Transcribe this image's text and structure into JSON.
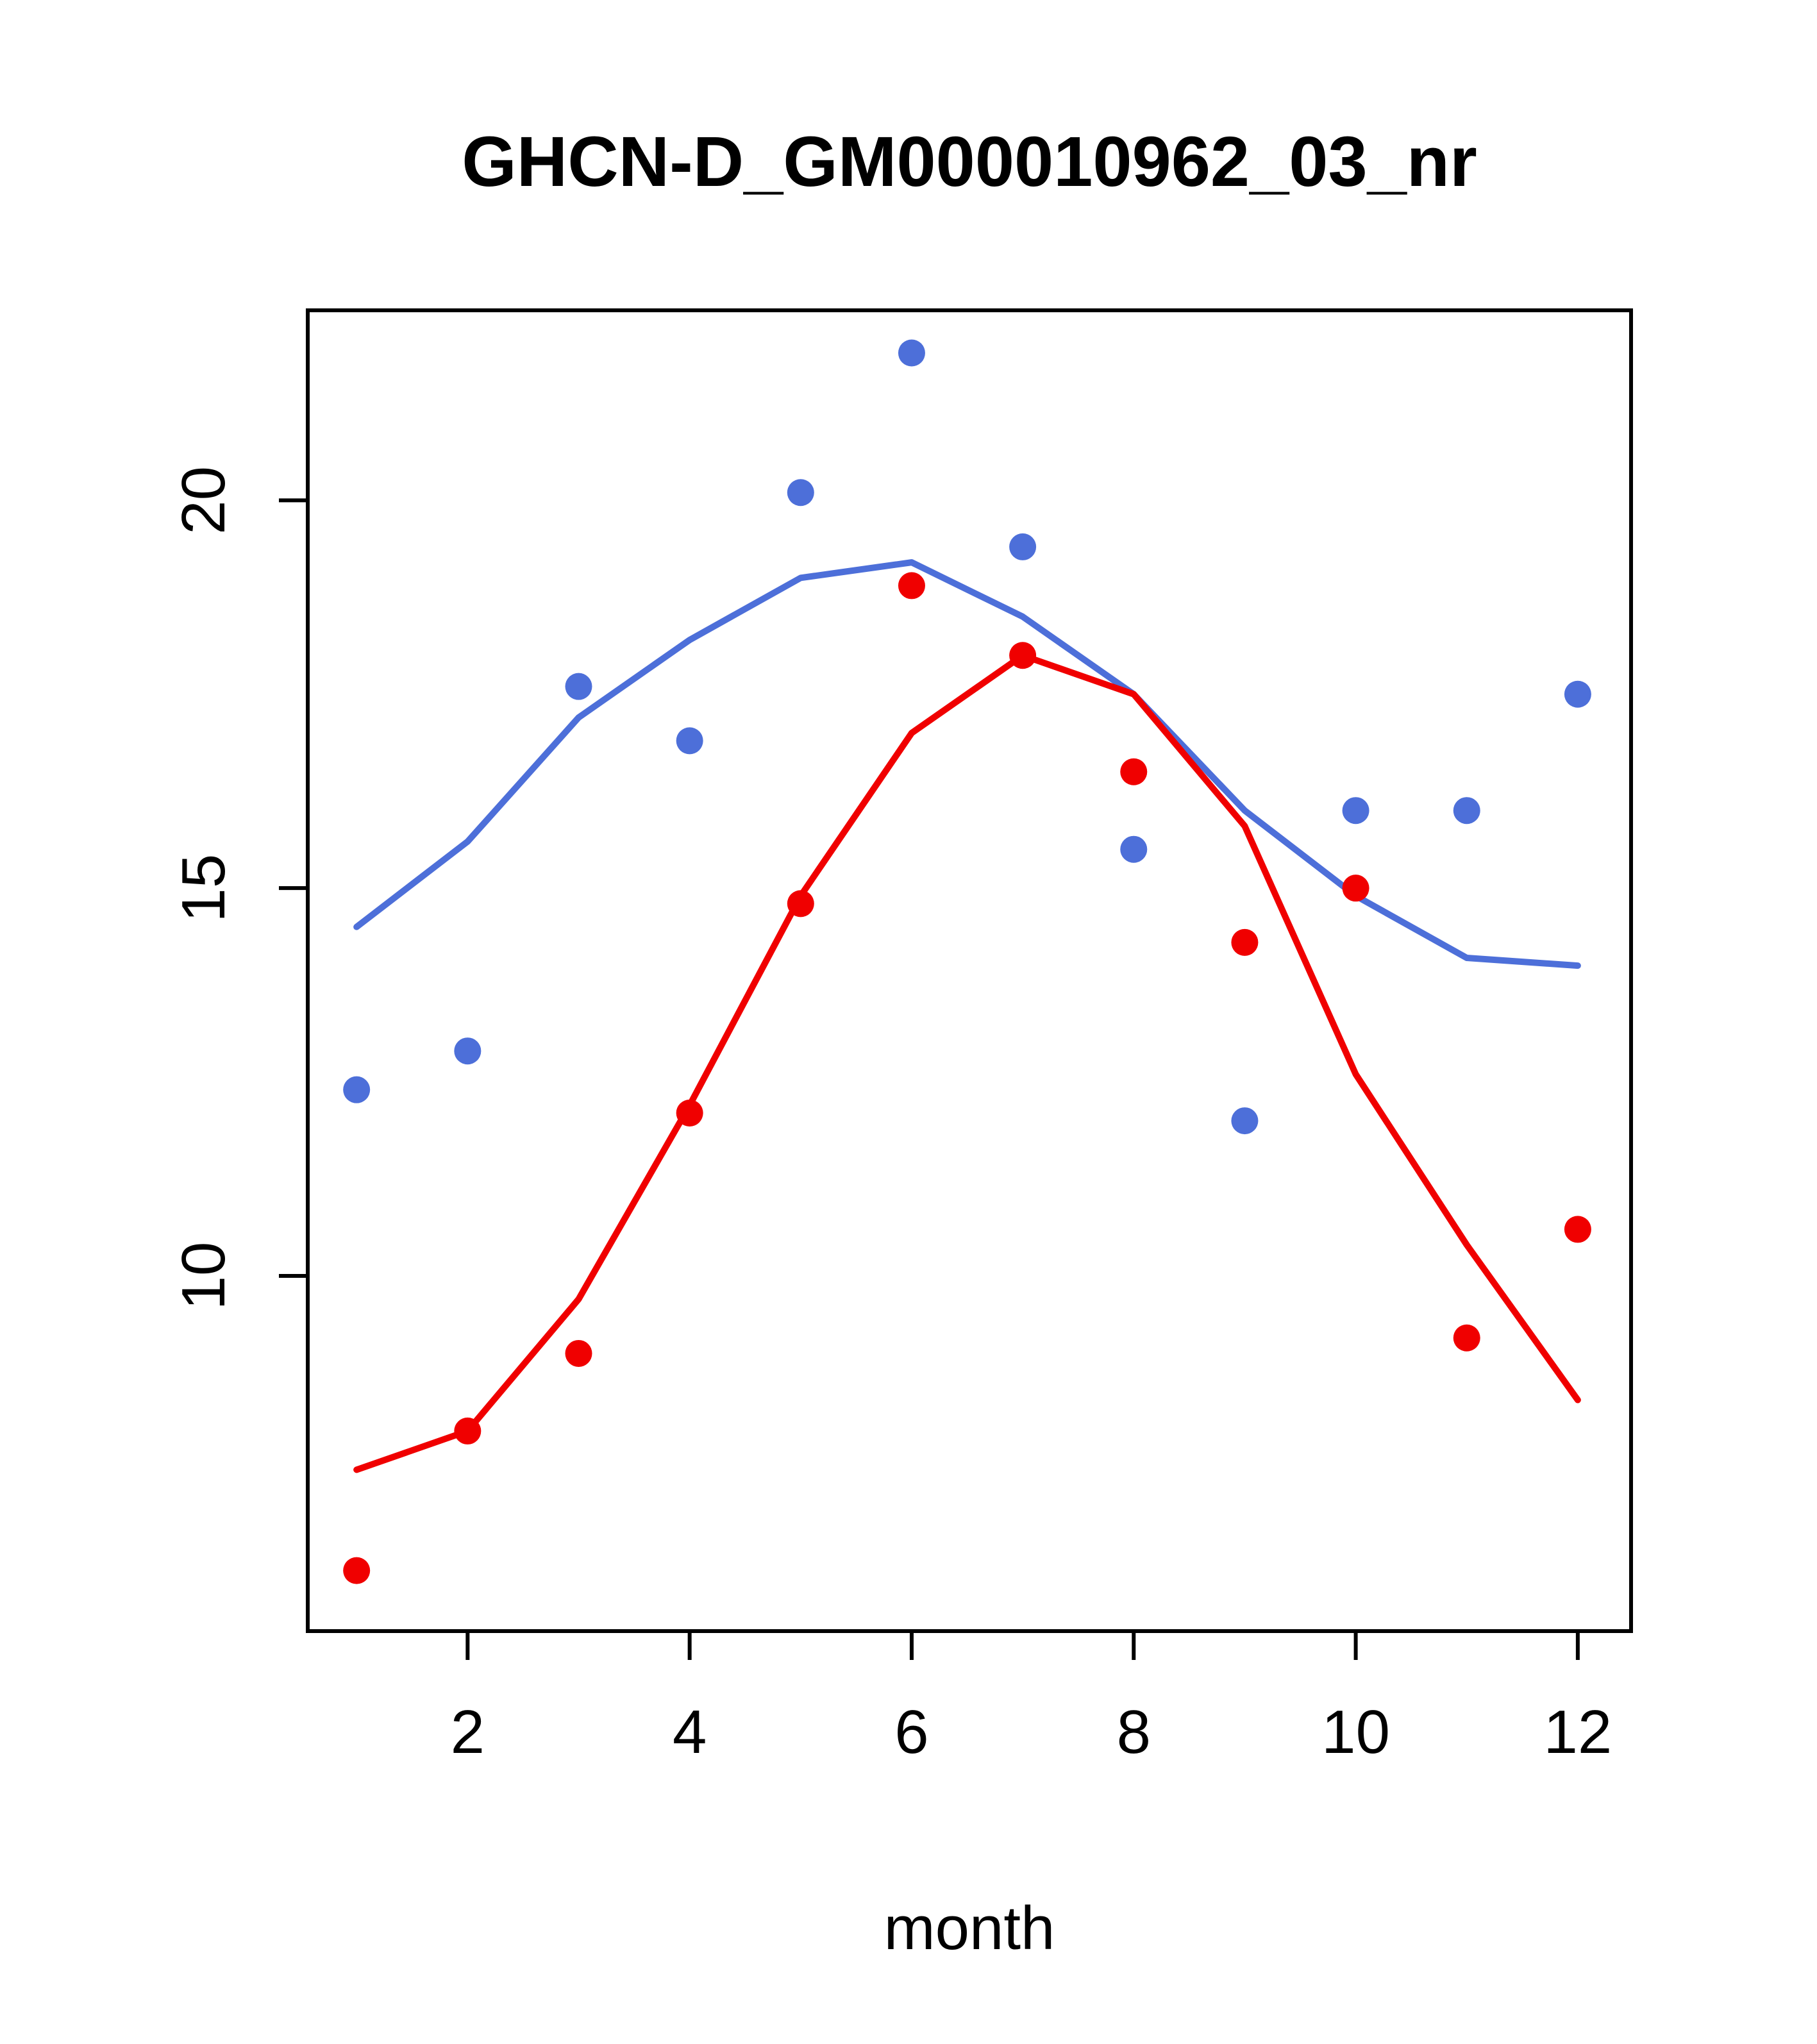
{
  "chart_data": {
    "type": "scatter",
    "title": "GHCN-D_GM000010962_03_nr",
    "xlabel": "month",
    "ylabel": "",
    "x": [
      1,
      2,
      3,
      4,
      5,
      6,
      7,
      8,
      9,
      10,
      11,
      12
    ],
    "xticks": [
      2,
      4,
      6,
      8,
      10,
      12
    ],
    "yticks": [
      10,
      15,
      20
    ],
    "xlim": [
      0.56,
      12.48
    ],
    "ylim": [
      5.42,
      22.45
    ],
    "grid": false,
    "legend": "none",
    "colors": {
      "blue_series": "#4D6FD9",
      "red_series": "#F00000",
      "axis": "#000000",
      "background": "#FFFFFF"
    },
    "series": [
      {
        "name": "blue-smoothed-line",
        "type": "line",
        "color": "#4D6FD9",
        "values": [
          14.5,
          15.6,
          17.2,
          18.2,
          19.0,
          19.2,
          18.5,
          17.5,
          16.0,
          14.9,
          14.1,
          14.0
        ]
      },
      {
        "name": "red-smoothed-line",
        "type": "line",
        "color": "#F00000",
        "values": [
          7.5,
          8.0,
          9.7,
          12.2,
          14.9,
          17.0,
          18.0,
          17.5,
          15.8,
          12.6,
          10.4,
          8.4
        ]
      },
      {
        "name": "blue-monthly-points",
        "type": "points",
        "color": "#4D6FD9",
        "values": [
          12.4,
          12.9,
          17.6,
          16.9,
          20.1,
          21.9,
          19.4,
          15.5,
          12.0,
          16.0,
          16.0,
          17.5
        ]
      },
      {
        "name": "red-monthly-points",
        "type": "points",
        "color": "#F00000",
        "values": [
          6.2,
          8.0,
          9.0,
          12.1,
          14.8,
          18.9,
          18.0,
          16.5,
          14.3,
          15.0,
          9.2,
          10.6
        ]
      }
    ]
  }
}
